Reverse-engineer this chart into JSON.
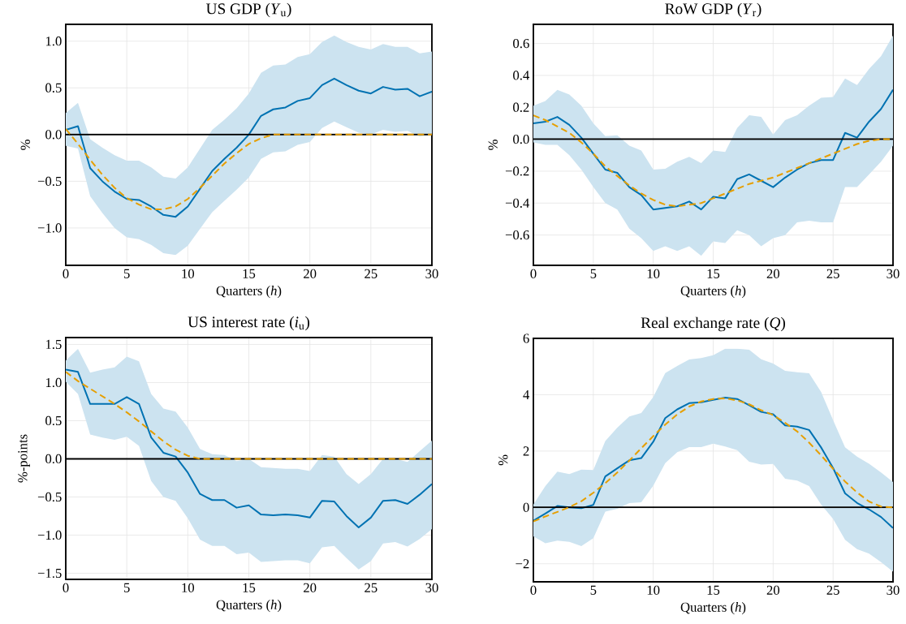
{
  "chart_data": [
    {
      "type": "line",
      "title": "US GDP (*Y*$_{u}$)",
      "xlabel": "Quarters (*h*)",
      "ylabel": "%",
      "grid": true,
      "x": [
        0,
        1,
        2,
        3,
        4,
        5,
        6,
        7,
        8,
        9,
        10,
        11,
        12,
        13,
        14,
        15,
        16,
        17,
        18,
        19,
        20,
        21,
        22,
        23,
        24,
        25,
        26,
        27,
        28,
        29,
        30
      ],
      "xlim": [
        0,
        30
      ],
      "ylim": [
        -1.4,
        1.18
      ],
      "xticks": [
        0,
        5,
        10,
        15,
        20,
        25,
        30
      ],
      "yticks": [
        {
          "value": -1.0,
          "label": "−1.0"
        },
        {
          "value": -0.5,
          "label": "−0.5"
        },
        {
          "value": 0,
          "label": "0.0"
        },
        {
          "value": 0.5,
          "label": "0.5"
        },
        {
          "value": 1.0,
          "label": "1.0"
        }
      ],
      "ref_lines": [
        {
          "axis": "y",
          "value": 0,
          "color": "#000000"
        }
      ],
      "series": [
        {
          "type": "line",
          "color": "#0072b2",
          "line_style": "solid",
          "values": [
            0.05,
            0.09,
            -0.36,
            -0.5,
            -0.61,
            -0.69,
            -0.7,
            -0.77,
            -0.86,
            -0.88,
            -0.77,
            -0.58,
            -0.39,
            -0.26,
            -0.14,
            0.0,
            0.2,
            0.27,
            0.29,
            0.36,
            0.39,
            0.53,
            0.6,
            0.53,
            0.47,
            0.44,
            0.51,
            0.48,
            0.49,
            0.41,
            0.46
          ],
          "upper": [
            0.23,
            0.34,
            -0.05,
            -0.14,
            -0.22,
            -0.28,
            -0.28,
            -0.35,
            -0.45,
            -0.47,
            -0.35,
            -0.15,
            0.05,
            0.16,
            0.28,
            0.44,
            0.66,
            0.74,
            0.75,
            0.83,
            0.86,
            0.99,
            1.06,
            0.99,
            0.94,
            0.91,
            0.97,
            0.94,
            0.94,
            0.87,
            0.89
          ],
          "lower": [
            -0.12,
            -0.15,
            -0.66,
            -0.84,
            -1.0,
            -1.1,
            -1.12,
            -1.18,
            -1.27,
            -1.29,
            -1.19,
            -1.01,
            -0.83,
            -0.71,
            -0.59,
            -0.46,
            -0.26,
            -0.19,
            -0.18,
            -0.11,
            -0.08,
            0.07,
            0.14,
            0.08,
            0.02,
            0.0,
            0.05,
            0.03,
            0.04,
            -0.02,
            0.0
          ]
        },
        {
          "type": "line",
          "color": "#e69f00",
          "line_style": "dashed",
          "values": [
            0.06,
            -0.1,
            -0.27,
            -0.43,
            -0.57,
            -0.68,
            -0.75,
            -0.8,
            -0.8,
            -0.77,
            -0.69,
            -0.57,
            -0.44,
            -0.31,
            -0.2,
            -0.1,
            -0.04,
            0,
            0,
            0,
            0,
            0,
            0,
            0,
            0,
            0,
            0,
            0,
            0,
            0,
            0
          ]
        }
      ]
    },
    {
      "type": "line",
      "title": "RoW GDP (*Y*$_{r}$)",
      "xlabel": "Quarters (*h*)",
      "ylabel": "%",
      "grid": true,
      "x": [
        0,
        1,
        2,
        3,
        4,
        5,
        6,
        7,
        8,
        9,
        10,
        11,
        12,
        13,
        14,
        15,
        16,
        17,
        18,
        19,
        20,
        21,
        22,
        23,
        24,
        25,
        26,
        27,
        28,
        29,
        30
      ],
      "xlim": [
        0,
        30
      ],
      "ylim": [
        -0.79,
        0.72
      ],
      "xticks": [
        0,
        5,
        10,
        15,
        20,
        25,
        30
      ],
      "yticks": [
        {
          "value": -0.6,
          "label": "−0.6"
        },
        {
          "value": -0.4,
          "label": "−0.4"
        },
        {
          "value": -0.2,
          "label": "−0.2"
        },
        {
          "value": 0,
          "label": "0.0"
        },
        {
          "value": 0.2,
          "label": "0.2"
        },
        {
          "value": 0.4,
          "label": "0.4"
        },
        {
          "value": 0.6,
          "label": "0.6"
        }
      ],
      "ref_lines": [
        {
          "axis": "y",
          "value": 0,
          "color": "#000000"
        }
      ],
      "series": [
        {
          "type": "line",
          "color": "#0072b2",
          "line_style": "solid",
          "values": [
            0.1,
            0.11,
            0.14,
            0.09,
            0.01,
            -0.09,
            -0.19,
            -0.21,
            -0.3,
            -0.35,
            -0.44,
            -0.43,
            -0.42,
            -0.39,
            -0.44,
            -0.36,
            -0.37,
            -0.25,
            -0.22,
            -0.26,
            -0.3,
            -0.24,
            -0.19,
            -0.15,
            -0.13,
            -0.13,
            0.04,
            0.01,
            0.11,
            0.19,
            0.31
          ],
          "upper": [
            0.21,
            0.24,
            0.31,
            0.28,
            0.21,
            0.1,
            0.02,
            0.025,
            -0.04,
            -0.07,
            -0.19,
            -0.185,
            -0.14,
            -0.11,
            -0.15,
            -0.07,
            -0.08,
            0.07,
            0.15,
            0.14,
            0.03,
            0.12,
            0.15,
            0.21,
            0.26,
            0.265,
            0.38,
            0.34,
            0.44,
            0.52,
            0.65
          ],
          "lower": [
            -0.02,
            -0.035,
            -0.035,
            -0.1,
            -0.19,
            -0.3,
            -0.4,
            -0.44,
            -0.56,
            -0.62,
            -0.7,
            -0.67,
            -0.7,
            -0.67,
            -0.73,
            -0.64,
            -0.65,
            -0.57,
            -0.6,
            -0.67,
            -0.62,
            -0.6,
            -0.52,
            -0.51,
            -0.52,
            -0.52,
            -0.3,
            -0.3,
            -0.22,
            -0.14,
            -0.04
          ]
        },
        {
          "type": "line",
          "color": "#e69f00",
          "line_style": "dashed",
          "values": [
            0.15,
            0.12,
            0.08,
            0.04,
            -0.02,
            -0.09,
            -0.17,
            -0.23,
            -0.29,
            -0.34,
            -0.38,
            -0.41,
            -0.42,
            -0.41,
            -0.4,
            -0.37,
            -0.34,
            -0.31,
            -0.28,
            -0.26,
            -0.24,
            -0.21,
            -0.18,
            -0.15,
            -0.12,
            -0.09,
            -0.06,
            -0.03,
            -0.01,
            0,
            0
          ]
        }
      ]
    },
    {
      "type": "line",
      "title": "US interest rate (*i*$_{u}$)",
      "xlabel": "Quarters (*h*)",
      "ylabel": "%-points",
      "grid": true,
      "x": [
        0,
        1,
        2,
        3,
        4,
        5,
        6,
        7,
        8,
        9,
        10,
        11,
        12,
        13,
        14,
        15,
        16,
        17,
        18,
        19,
        20,
        21,
        22,
        23,
        24,
        25,
        26,
        27,
        28,
        29,
        30
      ],
      "xlim": [
        0,
        30
      ],
      "ylim": [
        -1.58,
        1.59
      ],
      "xticks": [
        0,
        5,
        10,
        15,
        20,
        25,
        30
      ],
      "yticks": [
        {
          "value": -1.5,
          "label": "−1.5"
        },
        {
          "value": -1.0,
          "label": "−1.0"
        },
        {
          "value": -0.5,
          "label": "−0.5"
        },
        {
          "value": 0,
          "label": "0.0"
        },
        {
          "value": 0.5,
          "label": "0.5"
        },
        {
          "value": 1.0,
          "label": "1.0"
        },
        {
          "value": 1.5,
          "label": "1.5"
        }
      ],
      "ref_lines": [
        {
          "axis": "y",
          "value": 0,
          "color": "#000000"
        }
      ],
      "series": [
        {
          "type": "line",
          "color": "#0072b2",
          "line_style": "solid",
          "values": [
            1.17,
            1.14,
            0.72,
            0.72,
            0.72,
            0.81,
            0.72,
            0.28,
            0.08,
            0.03,
            -0.18,
            -0.46,
            -0.54,
            -0.54,
            -0.64,
            -0.61,
            -0.73,
            -0.74,
            -0.73,
            -0.74,
            -0.77,
            -0.55,
            -0.56,
            -0.75,
            -0.9,
            -0.77,
            -0.55,
            -0.54,
            -0.59,
            -0.47,
            -0.33
          ],
          "upper": [
            1.29,
            1.44,
            1.13,
            1.17,
            1.2,
            1.34,
            1.28,
            0.85,
            0.66,
            0.62,
            0.41,
            0.13,
            0.06,
            0.05,
            -0.03,
            0.0,
            -0.11,
            -0.12,
            -0.13,
            -0.13,
            -0.16,
            0.05,
            0.03,
            -0.2,
            -0.33,
            -0.2,
            0.0,
            0.0,
            -0.04,
            0.1,
            0.24
          ],
          "lower": [
            1.01,
            0.85,
            0.32,
            0.28,
            0.25,
            0.29,
            0.17,
            -0.29,
            -0.5,
            -0.55,
            -0.78,
            -1.06,
            -1.14,
            -1.14,
            -1.25,
            -1.23,
            -1.35,
            -1.34,
            -1.33,
            -1.33,
            -1.37,
            -1.16,
            -1.14,
            -1.3,
            -1.45,
            -1.34,
            -1.11,
            -1.09,
            -1.15,
            -1.05,
            -0.92
          ]
        },
        {
          "type": "line",
          "color": "#e69f00",
          "line_style": "dashed",
          "values": [
            1.14,
            1.02,
            0.92,
            0.82,
            0.72,
            0.61,
            0.49,
            0.36,
            0.23,
            0.12,
            0.04,
            0,
            0,
            0,
            0,
            0,
            0,
            0,
            0,
            0,
            0,
            0,
            0,
            0,
            0,
            0,
            0,
            0,
            0,
            0,
            0
          ]
        }
      ]
    },
    {
      "type": "line",
      "title": "Real exchange rate (*Q*)",
      "xlabel": "Quarters (*h*)",
      "ylabel": "%",
      "grid": true,
      "x": [
        0,
        1,
        2,
        3,
        4,
        5,
        6,
        7,
        8,
        9,
        10,
        11,
        12,
        13,
        14,
        15,
        16,
        17,
        18,
        19,
        20,
        21,
        22,
        23,
        24,
        25,
        26,
        27,
        28,
        29,
        30
      ],
      "xlim": [
        0,
        30
      ],
      "ylim": [
        -2.64,
        6
      ],
      "xticks": [
        0,
        5,
        10,
        15,
        20,
        25,
        30
      ],
      "yticks": [
        {
          "value": -2,
          "label": "−2"
        },
        0,
        2,
        4,
        6
      ],
      "ref_lines": [
        {
          "axis": "y",
          "value": 0,
          "color": "#000000"
        }
      ],
      "series": [
        {
          "type": "line",
          "color": "#0072b2",
          "line_style": "solid",
          "values": [
            -0.47,
            -0.22,
            0.05,
            0.0,
            -0.03,
            0.09,
            1.1,
            1.39,
            1.67,
            1.75,
            2.33,
            3.17,
            3.48,
            3.7,
            3.73,
            3.82,
            3.9,
            3.85,
            3.63,
            3.39,
            3.31,
            2.91,
            2.87,
            2.75,
            2.13,
            1.4,
            0.5,
            0.16,
            -0.07,
            -0.34,
            -0.73
          ],
          "upper": [
            0.1,
            0.76,
            1.27,
            1.18,
            1.34,
            1.33,
            2.36,
            2.83,
            3.23,
            3.35,
            3.92,
            4.77,
            5.02,
            5.25,
            5.3,
            5.4,
            5.63,
            5.63,
            5.6,
            5.26,
            5.11,
            4.85,
            4.8,
            4.76,
            4.1,
            3.1,
            2.13,
            1.8,
            1.55,
            1.24,
            0.9
          ],
          "lower": [
            -1.03,
            -1.27,
            -1.18,
            -1.22,
            -1.37,
            -1.09,
            -0.15,
            -0.05,
            0.15,
            0.18,
            0.77,
            1.57,
            1.96,
            2.14,
            2.14,
            2.26,
            2.16,
            2.03,
            1.62,
            1.52,
            1.54,
            1.02,
            0.95,
            0.76,
            0.1,
            -0.41,
            -1.15,
            -1.48,
            -1.64,
            -1.94,
            -2.28
          ]
        },
        {
          "type": "line",
          "color": "#e69f00",
          "line_style": "dashed",
          "values": [
            -0.5,
            -0.32,
            -0.16,
            0.01,
            0.22,
            0.52,
            0.86,
            1.24,
            1.66,
            2.1,
            2.53,
            2.94,
            3.3,
            3.58,
            3.76,
            3.85,
            3.87,
            3.8,
            3.66,
            3.45,
            3.28,
            3.0,
            2.7,
            2.3,
            1.85,
            1.37,
            0.92,
            0.53,
            0.21,
            0.03,
            0.0
          ]
        }
      ]
    }
  ]
}
